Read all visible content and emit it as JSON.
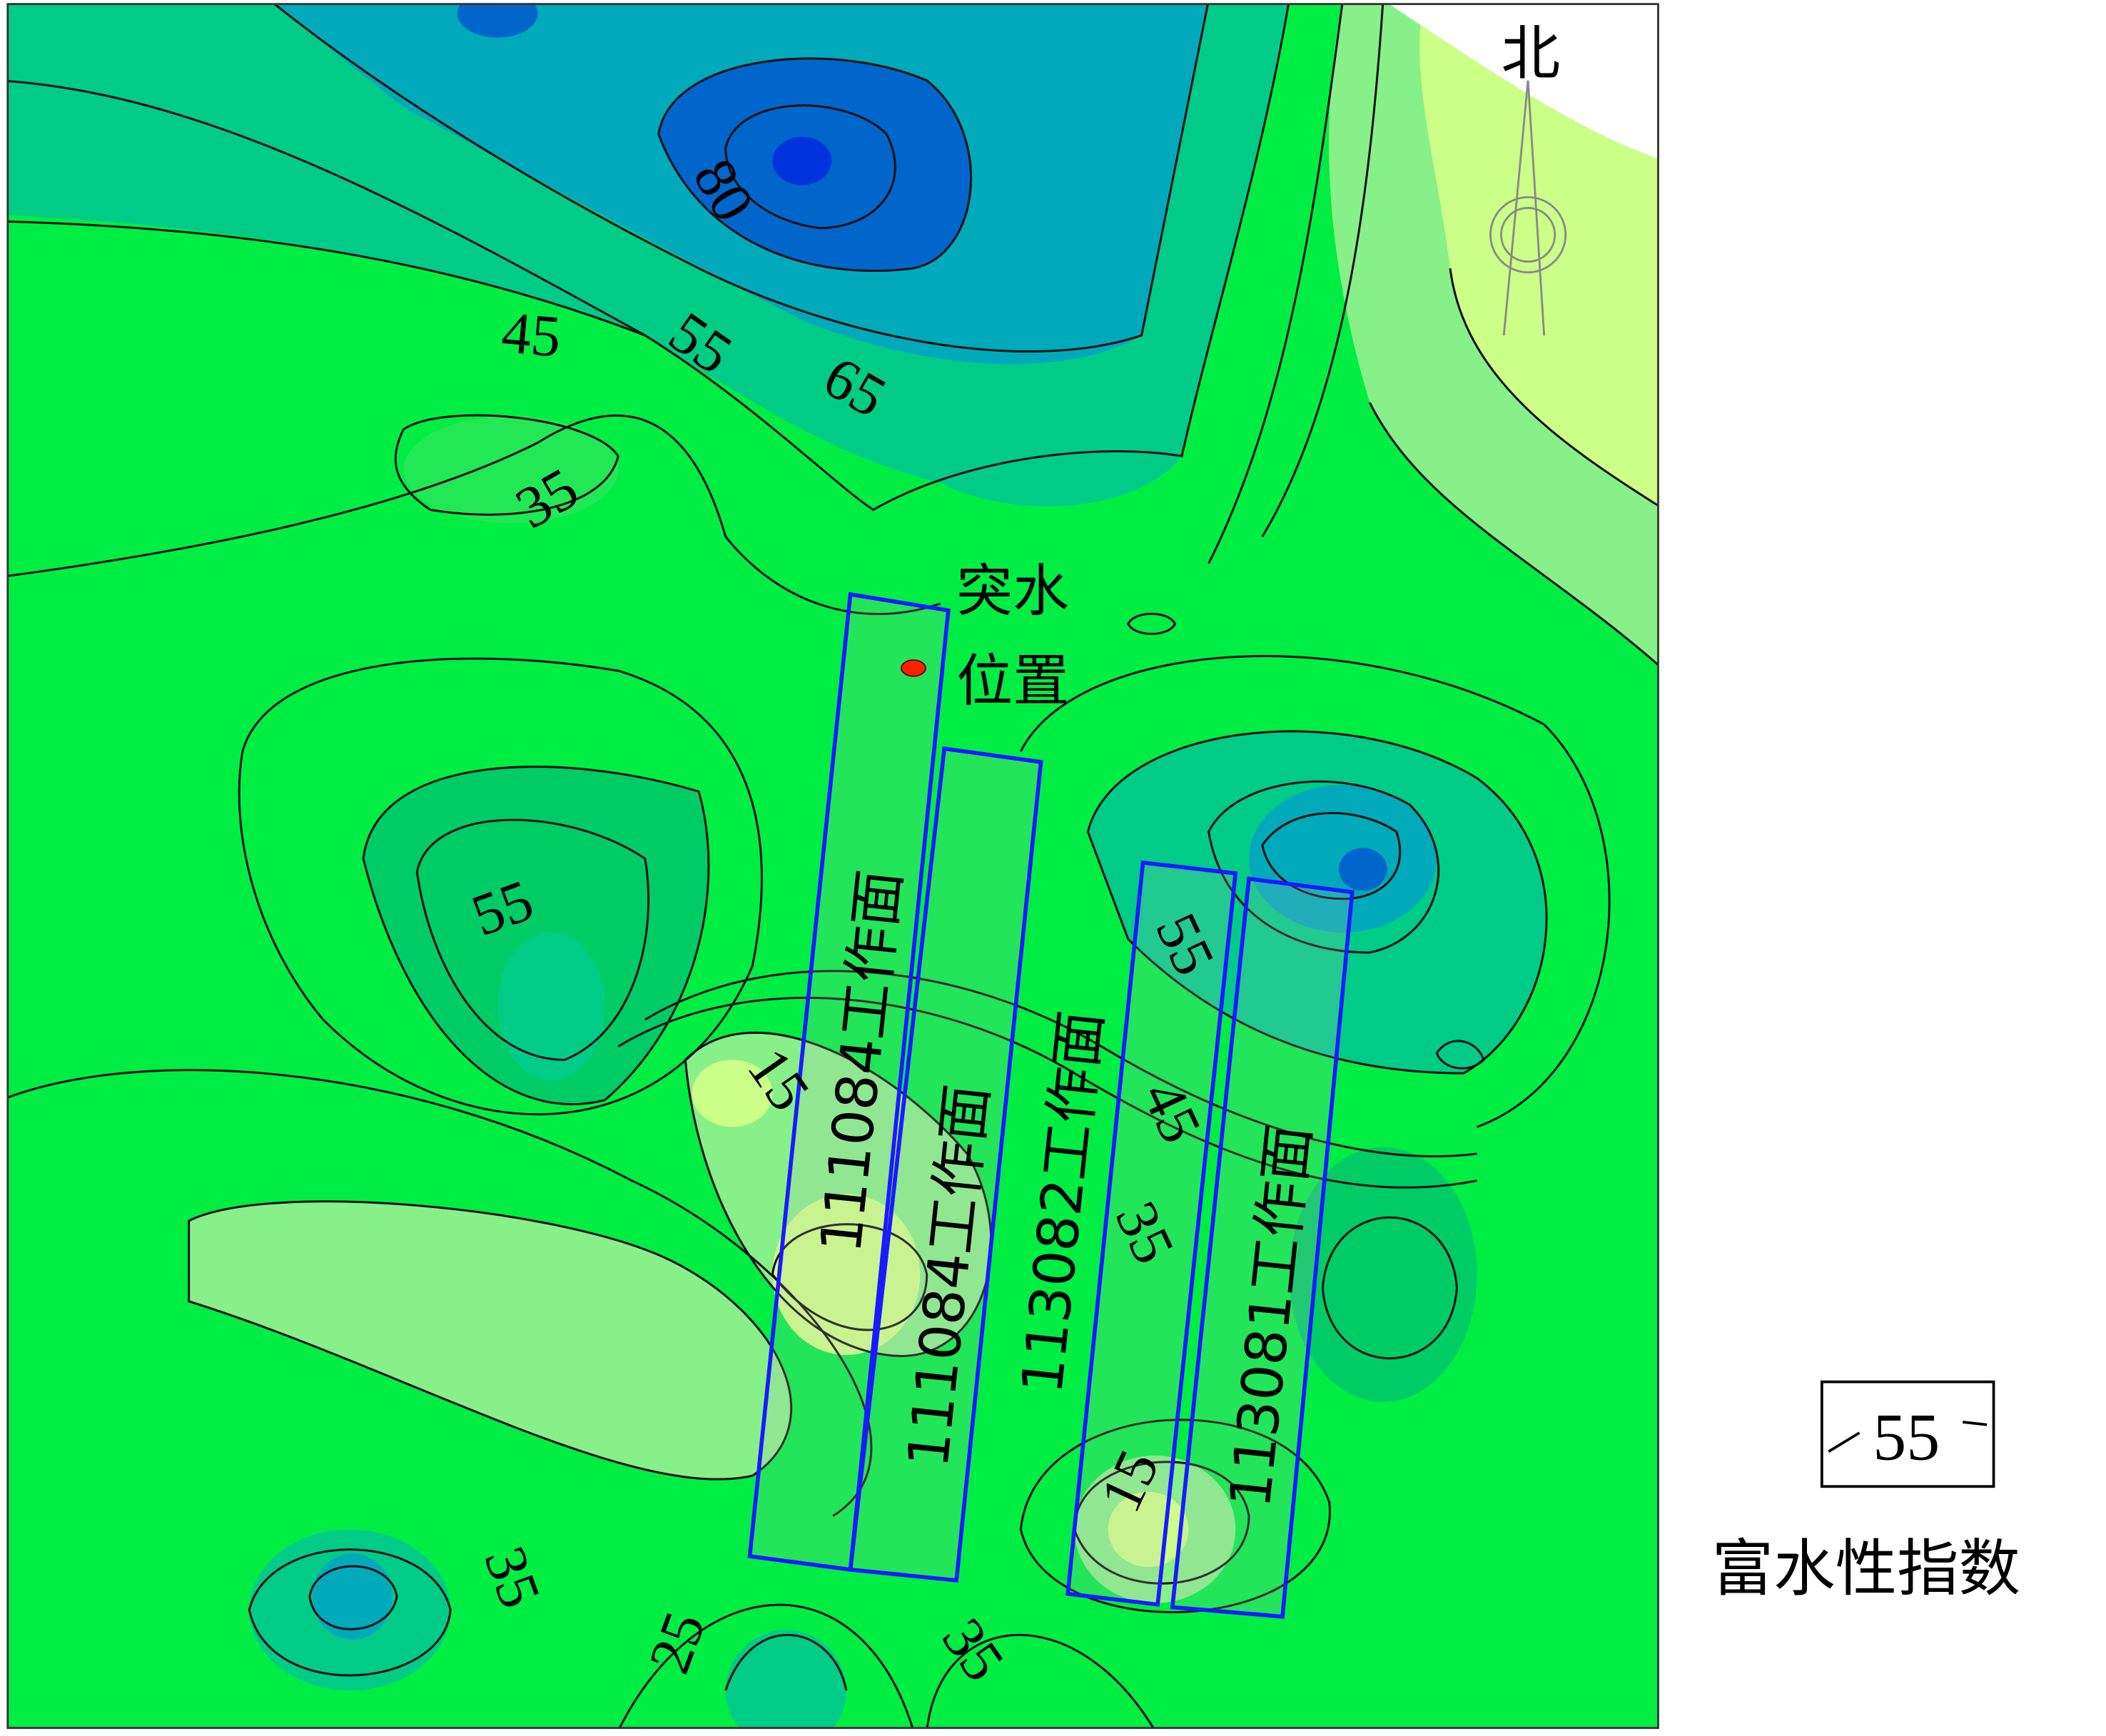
{
  "map": {
    "north_label": "北",
    "inrush_label_line1": "突水",
    "inrush_label_line2": "位置",
    "workfaces": [
      {
        "label": "111084工作面"
      },
      {
        "label": "111084工作面"
      },
      {
        "label": "113082工作面"
      },
      {
        "label": "113081工作面"
      }
    ],
    "contour_labels": [
      "80",
      "45",
      "55",
      "65",
      "35",
      "55",
      "15",
      "55",
      "45",
      "35",
      "15",
      "35",
      "25",
      "35"
    ],
    "colors": {
      "low": "#ccff88",
      "light_green": "#88f088",
      "green": "#00ee44",
      "teal": "#00cc88",
      "cyan": "#00aabb",
      "blue": "#0066cc",
      "deep_blue": "#0033dd",
      "inrush_point": "#ff2200",
      "workface_outline": "#1a1aff"
    }
  },
  "legend": {
    "sample_value": "55",
    "title": "富水性指数"
  }
}
